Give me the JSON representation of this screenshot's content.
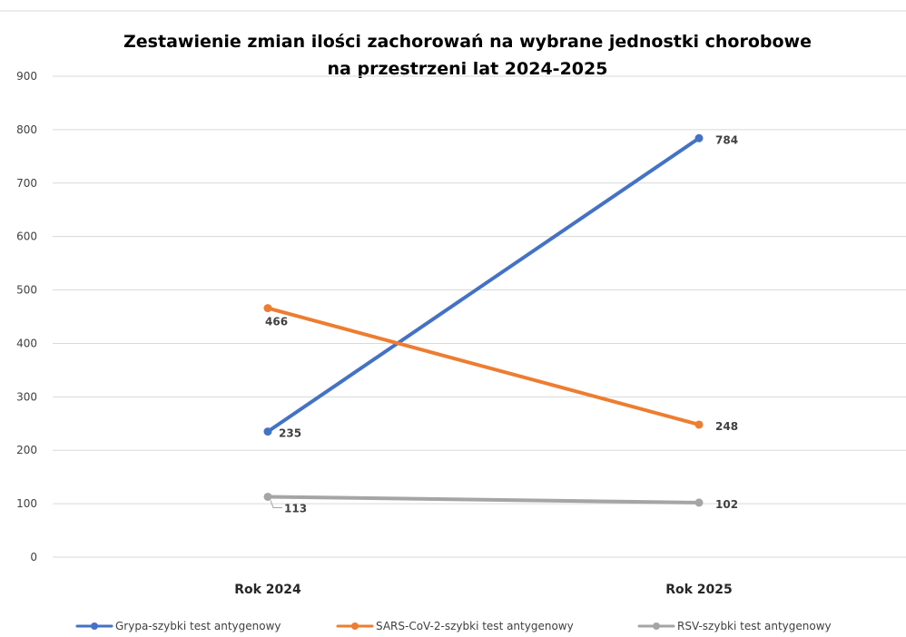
{
  "chart_data": {
    "type": "line",
    "title_line1": "Zestawienie zmian ilości zachorowań na wybrane jednostki chorobowe",
    "title_line2": "na przestrzeni lat 2024-2025",
    "categories": [
      "Rok 2024",
      "Rok 2025"
    ],
    "series": [
      {
        "name": "Grypa-szybki test antygenowy",
        "values": [
          235,
          784
        ],
        "color": "#4472C4"
      },
      {
        "name": "SARS-CoV-2-szybki test antygenowy",
        "values": [
          466,
          248
        ],
        "color": "#ED7D31"
      },
      {
        "name": "RSV-szybki test antygenowy",
        "values": [
          113,
          102
        ],
        "color": "#A5A5A5"
      }
    ],
    "ylim": [
      0,
      900
    ],
    "yticks": [
      0,
      100,
      200,
      300,
      400,
      500,
      600,
      700,
      800,
      900
    ],
    "xlabel": "",
    "ylabel": "",
    "grid": true,
    "data_labels": true,
    "legend_position": "bottom",
    "gridline_color": "#D9D9D9"
  }
}
